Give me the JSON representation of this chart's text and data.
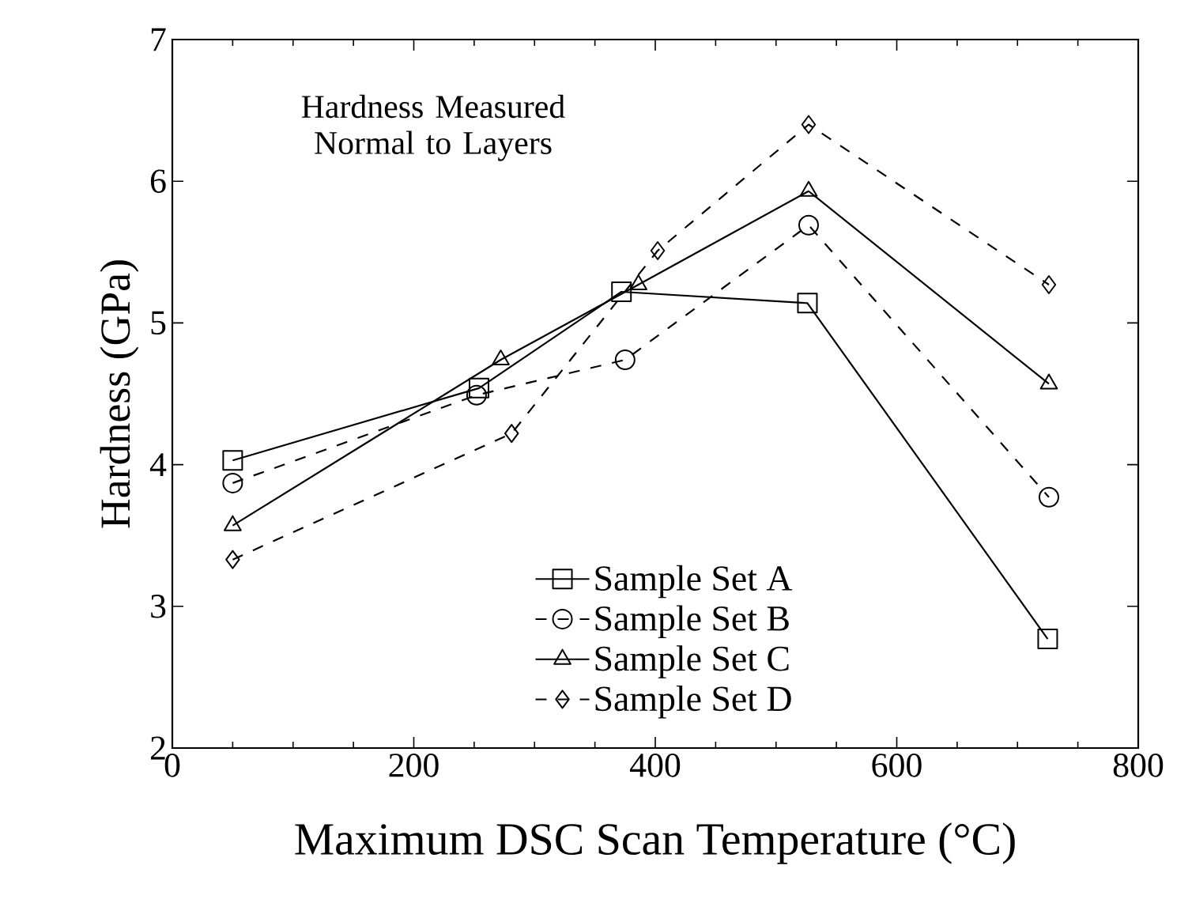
{
  "chart_data": {
    "type": "line",
    "xlabel": "Maximum DSC Scan Temperature (°C)",
    "ylabel": "Hardness (GPa)",
    "annotations": [
      "Hardness Measured\nNormal to Layers"
    ],
    "xlim": [
      0,
      800
    ],
    "xticks": [
      0,
      200,
      400,
      600,
      800
    ],
    "ylim": [
      2,
      7
    ],
    "yticks": [
      2,
      3,
      4,
      5,
      6,
      7
    ],
    "legend": "bottom",
    "grid": false,
    "series": [
      {
        "name": "Sample Set A",
        "color": "#000000",
        "marker": "square",
        "line_style": "solid",
        "x": [
          50,
          254,
          372,
          526,
          725
        ],
        "values": [
          4.03,
          4.54,
          5.22,
          5.14,
          2.77
        ]
      },
      {
        "name": "Sample Set B",
        "color": "#000000",
        "marker": "circle",
        "line_style": "dashed",
        "x": [
          50,
          252,
          375,
          527,
          726
        ],
        "values": [
          3.87,
          4.49,
          4.74,
          5.69,
          3.77
        ]
      },
      {
        "name": "Sample Set C",
        "color": "#000000",
        "marker": "triangle",
        "line_style": "solid",
        "x": [
          50,
          272,
          386,
          527,
          726
        ],
        "values": [
          3.57,
          4.74,
          5.27,
          5.93,
          4.57
        ]
      },
      {
        "name": "Sample Set D",
        "color": "#000000",
        "marker": "diamond",
        "line_style": "dashed",
        "x": [
          50,
          281,
          402,
          527,
          726
        ],
        "values": [
          3.33,
          4.22,
          5.51,
          6.4,
          5.27
        ]
      }
    ]
  }
}
